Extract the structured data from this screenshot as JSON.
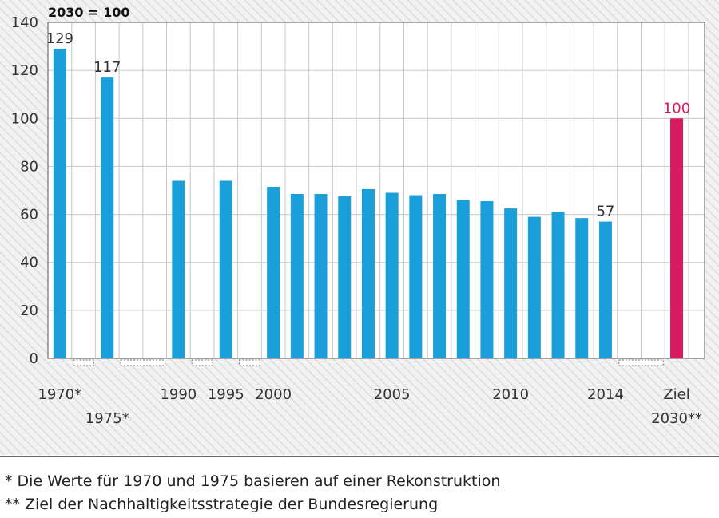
{
  "chart_data": {
    "type": "bar",
    "index_label": "2030 = 100",
    "categories": [
      "1970",
      "1975",
      "1990",
      "1995",
      "2000",
      "2001",
      "2002",
      "2003",
      "2004",
      "2005",
      "2006",
      "2007",
      "2008",
      "2009",
      "2010",
      "2011",
      "2012",
      "2013",
      "2014",
      "Ziel 2030"
    ],
    "values": [
      129,
      117,
      74,
      74,
      71.5,
      68.5,
      68.5,
      67.5,
      70.5,
      69,
      68,
      68.5,
      66,
      65.5,
      62.5,
      59,
      61,
      58.5,
      57,
      100
    ],
    "target_index": 19,
    "data_labels": [
      {
        "index": 0,
        "text": "129"
      },
      {
        "index": 1,
        "text": "117"
      },
      {
        "index": 18,
        "text": "57"
      },
      {
        "index": 19,
        "text": "100"
      }
    ],
    "x_tick_labels": [
      {
        "year": 1970,
        "text": "1970*",
        "row": 1
      },
      {
        "year": 1975,
        "text": "1975*",
        "row": 2
      },
      {
        "year": 1990,
        "text": "1990",
        "row": 1
      },
      {
        "year": 1995,
        "text": "1995",
        "row": 1
      },
      {
        "year": 2000,
        "text": "2000",
        "row": 1
      },
      {
        "year": 2005,
        "text": "2005",
        "row": 1
      },
      {
        "year": 2010,
        "text": "2010",
        "row": 1
      },
      {
        "year": 2014,
        "text": "2014",
        "row": 1
      },
      {
        "year": 2030,
        "text": "Ziel",
        "row": 1
      },
      {
        "year": 2030,
        "text": "2030**",
        "row": 2
      }
    ],
    "y_ticks": [
      0,
      20,
      40,
      60,
      80,
      100,
      120,
      140
    ],
    "ylim": [
      0,
      140
    ],
    "grid": true,
    "xlabel": "",
    "ylabel": "",
    "colors": {
      "bar": "#1a9fdb",
      "target_bar": "#d81b60",
      "target_label": "#d81b60",
      "label": "#333333"
    }
  },
  "footnotes": [
    "*   Die Werte für 1970 und 1975 basieren auf einer Rekonstruktion",
    "** Ziel der Nachhaltigkeitsstrategie der Bundesregierung"
  ]
}
